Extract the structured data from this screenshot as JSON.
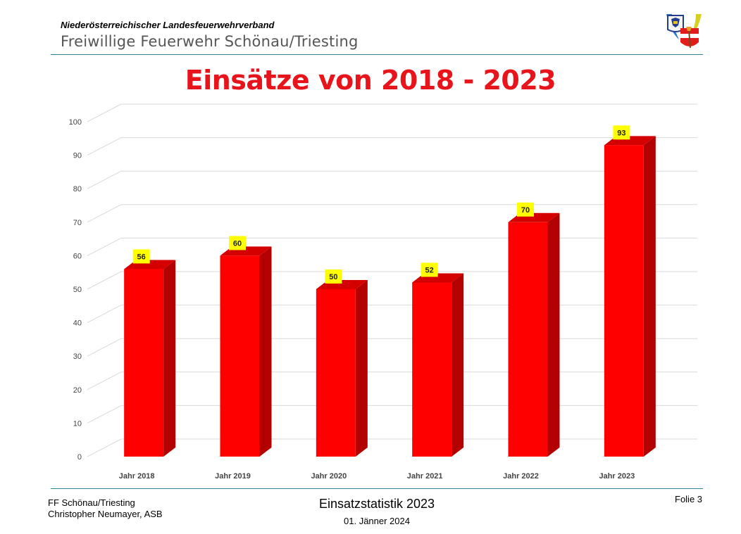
{
  "header": {
    "organization": "Niederösterreichischer  Landesfeuerwehrverband",
    "department": "Freiwillige Feuerwehr Schönau/Triesting"
  },
  "footer": {
    "left_line1": "FF Schönau/Triesting",
    "left_line2": "Christopher Neumayer, ASB",
    "center_title": "Einsatzstatistik 2023",
    "center_date": "01. Jänner 2024",
    "slide": "Folie 3"
  },
  "chart_data": {
    "type": "bar",
    "title": "Einsätze von 2018 - 2023",
    "categories": [
      "Jahr 2018",
      "Jahr 2019",
      "Jahr 2020",
      "Jahr 2021",
      "Jahr 2022",
      "Jahr 2023"
    ],
    "values": [
      56,
      60,
      50,
      52,
      70,
      93
    ],
    "ylim": [
      0,
      100
    ],
    "yticks": [
      0,
      10,
      20,
      30,
      40,
      50,
      60,
      70,
      80,
      90,
      100
    ],
    "grid": true,
    "style": "3d",
    "colors": {
      "bar_front": "#ff0000",
      "bar_side": "#b30000",
      "bar_top": "#d40000",
      "label_bg": "#ffff00",
      "title": "#e8141b"
    }
  }
}
